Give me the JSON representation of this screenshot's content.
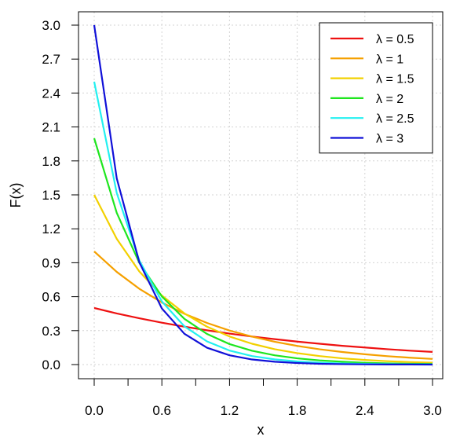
{
  "chart_data": {
    "type": "line",
    "title": "",
    "xlabel": "x",
    "ylabel": "F(x)",
    "xlim": [
      0,
      3
    ],
    "ylim": [
      0,
      3
    ],
    "x_ticks": [
      0,
      0.6,
      1.2,
      1.8,
      2.4,
      3.0
    ],
    "x_tick_labels": [
      "0.0",
      "0.6",
      "1.2",
      "1.8",
      "2.4",
      "3.0"
    ],
    "y_ticks": [
      0,
      0.3,
      0.6,
      0.9,
      1.2,
      1.5,
      1.8,
      2.1,
      2.4,
      2.7,
      3.0
    ],
    "y_tick_labels": [
      "0.0",
      "0.3",
      "0.6",
      "0.9",
      "1.2",
      "1.5",
      "1.8",
      "2.1",
      "2.4",
      "2.7",
      "3.0"
    ],
    "grid": true,
    "legend_position": "top-right",
    "x": [
      0,
      0.2,
      0.4,
      0.6,
      0.8,
      1.0,
      1.2,
      1.4,
      1.6,
      1.8,
      2.0,
      2.2,
      2.4,
      2.6,
      2.8,
      3.0
    ],
    "series": [
      {
        "name": "λ = 0.5",
        "color": "#ee1111",
        "values": [
          0.5,
          0.452,
          0.409,
          0.37,
          0.335,
          0.303,
          0.274,
          0.248,
          0.225,
          0.203,
          0.184,
          0.166,
          0.151,
          0.136,
          0.123,
          0.112
        ]
      },
      {
        "name": "λ = 1",
        "color": "#f5a000",
        "values": [
          1.0,
          0.819,
          0.67,
          0.549,
          0.449,
          0.368,
          0.301,
          0.247,
          0.202,
          0.165,
          0.135,
          0.111,
          0.091,
          0.074,
          0.061,
          0.05
        ]
      },
      {
        "name": "λ = 1.5",
        "color": "#f2d000",
        "values": [
          1.5,
          1.111,
          0.823,
          0.61,
          0.452,
          0.335,
          0.248,
          0.184,
          0.136,
          0.101,
          0.075,
          0.055,
          0.041,
          0.03,
          0.022,
          0.017
        ]
      },
      {
        "name": "λ = 2",
        "color": "#1ee61e",
        "values": [
          2.0,
          1.341,
          0.899,
          0.602,
          0.404,
          0.271,
          0.181,
          0.122,
          0.082,
          0.055,
          0.037,
          0.025,
          0.016,
          0.011,
          0.007,
          0.005
        ]
      },
      {
        "name": "λ = 2.5",
        "color": "#22f0f0",
        "values": [
          2.5,
          1.516,
          0.92,
          0.558,
          0.338,
          0.205,
          0.124,
          0.075,
          0.046,
          0.028,
          0.017,
          0.01,
          0.006,
          0.004,
          0.002,
          0.001
        ]
      },
      {
        "name": "λ = 3",
        "color": "#1010d8",
        "values": [
          3.0,
          1.646,
          0.904,
          0.496,
          0.272,
          0.149,
          0.082,
          0.045,
          0.025,
          0.014,
          0.007,
          0.004,
          0.002,
          0.001,
          0.001,
          0.0
        ]
      }
    ]
  }
}
